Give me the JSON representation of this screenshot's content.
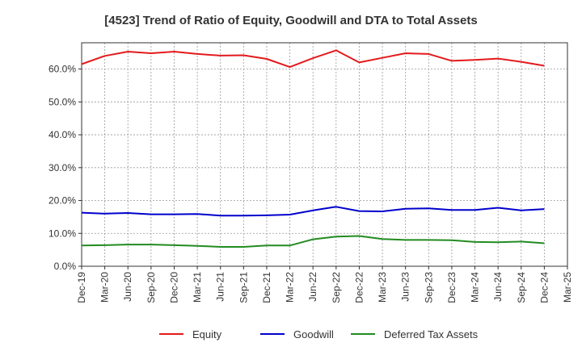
{
  "chart_data": {
    "type": "line",
    "title": "[4523]  Trend of Ratio of Equity, Goodwill and DTA to Total Assets",
    "xlabel": "",
    "ylabel": "",
    "ylim": [
      0,
      0.68
    ],
    "yticks": [
      0,
      0.1,
      0.2,
      0.3,
      0.4,
      0.5,
      0.6
    ],
    "ytick_labels": [
      "0.0%",
      "10.0%",
      "20.0%",
      "30.0%",
      "40.0%",
      "50.0%",
      "60.0%"
    ],
    "categories": [
      "Dec-19",
      "Mar-20",
      "Jun-20",
      "Sep-20",
      "Dec-20",
      "Mar-21",
      "Jun-21",
      "Sep-21",
      "Dec-21",
      "Mar-22",
      "Jun-22",
      "Sep-22",
      "Dec-22",
      "Mar-23",
      "Jun-23",
      "Sep-23",
      "Dec-23",
      "Mar-24",
      "Jun-24",
      "Sep-24",
      "Dec-24",
      "Mar-25"
    ],
    "series": [
      {
        "name": "Equity",
        "color": "#e31a1c",
        "values": [
          0.615,
          0.64,
          0.653,
          0.648,
          0.653,
          0.646,
          0.641,
          0.642,
          0.631,
          0.606,
          0.633,
          0.657,
          0.62,
          0.634,
          0.648,
          0.646,
          0.625,
          0.628,
          0.632,
          0.622,
          0.61,
          null
        ]
      },
      {
        "name": "Goodwill",
        "color": "#0000cc",
        "values": [
          0.163,
          0.16,
          0.162,
          0.158,
          0.158,
          0.159,
          0.154,
          0.154,
          0.155,
          0.157,
          0.17,
          0.181,
          0.168,
          0.167,
          0.175,
          0.176,
          0.171,
          0.171,
          0.178,
          0.17,
          0.174,
          null
        ]
      },
      {
        "name": "Deferred Tax Assets",
        "color": "#228b22",
        "values": [
          0.063,
          0.064,
          0.066,
          0.066,
          0.064,
          0.062,
          0.059,
          0.059,
          0.063,
          0.063,
          0.082,
          0.09,
          0.092,
          0.083,
          0.08,
          0.08,
          0.079,
          0.074,
          0.073,
          0.075,
          0.07,
          null
        ]
      }
    ],
    "grid": true,
    "legend": "bottom-center"
  }
}
